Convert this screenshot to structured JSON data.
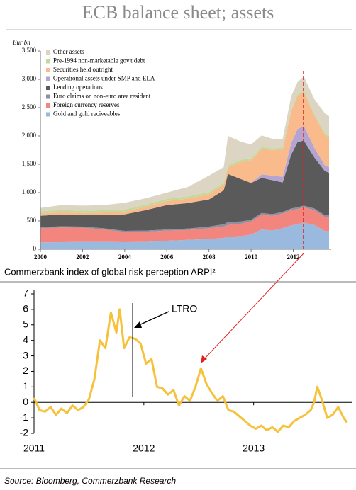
{
  "chart_data": [
    {
      "type": "area",
      "stacked": true,
      "title": "ECB balance sheet; assets",
      "ylabel": "Eur bn",
      "x": [
        2000,
        2001,
        2002,
        2003,
        2004,
        2005,
        2006,
        2007,
        2008,
        2008.7,
        2008.9,
        2009.5,
        2010,
        2010.5,
        2011,
        2011.5,
        2011.9,
        2012.2,
        2012.5,
        2013,
        2013.5,
        2013.7
      ],
      "xlim": [
        2000,
        2013.8
      ],
      "xticks": [
        2000,
        2002,
        2004,
        2006,
        2008,
        2010,
        2012
      ],
      "ylim": [
        0,
        3500
      ],
      "yticks": [
        0,
        500,
        {
          "value": 1000,
          "label": "1,000"
        },
        {
          "value": 1500,
          "label": "1,500"
        },
        {
          "value": 2000,
          "label": "2,000"
        },
        {
          "value": 2500,
          "label": "2,500"
        },
        {
          "value": 3000,
          "label": "3,000"
        },
        {
          "value": 3500,
          "label": "3,500"
        }
      ],
      "legend": "top-left",
      "series": [
        {
          "name": "Gold and gold reciveables",
          "color": "#9ab9df",
          "values": [
            120,
            125,
            130,
            130,
            125,
            130,
            150,
            165,
            180,
            200,
            220,
            230,
            260,
            350,
            330,
            370,
            420,
            440,
            470,
            430,
            320,
            320
          ]
        },
        {
          "name": "Foreign currency reserves",
          "color": "#f2867f",
          "values": [
            250,
            260,
            250,
            220,
            180,
            180,
            180,
            175,
            190,
            200,
            210,
            220,
            230,
            260,
            260,
            260,
            270,
            270,
            270,
            260,
            250,
            250
          ]
        },
        {
          "name": "Euro claims on non-euro area resident",
          "color": "#8e8fa0",
          "values": [
            20,
            20,
            20,
            20,
            20,
            20,
            20,
            25,
            30,
            40,
            50,
            40,
            30,
            30,
            30,
            30,
            30,
            30,
            30,
            30,
            30,
            30
          ]
        },
        {
          "name": "Lending operations",
          "color": "#5a5a5a",
          "values": [
            200,
            210,
            200,
            240,
            290,
            360,
            430,
            450,
            480,
            600,
            850,
            750,
            650,
            620,
            600,
            520,
            950,
            1150,
            1150,
            900,
            780,
            750
          ]
        },
        {
          "name": "Operational assets under SMP and ELA",
          "color": "#b4a4d2",
          "values": [
            0,
            0,
            0,
            0,
            0,
            0,
            0,
            0,
            0,
            0,
            0,
            0,
            0,
            60,
            80,
            100,
            200,
            230,
            260,
            170,
            100,
            100
          ]
        },
        {
          "name": "Securities held outright",
          "color": "#f9ba8c",
          "values": [
            40,
            40,
            40,
            40,
            50,
            60,
            70,
            80,
            90,
            100,
            110,
            300,
            400,
            450,
            450,
            480,
            560,
            580,
            600,
            570,
            540,
            520
          ]
        },
        {
          "name": "Pre-1994 non-marketable gov't debt",
          "color": "#c6d99c",
          "values": [
            40,
            40,
            40,
            40,
            40,
            40,
            40,
            40,
            40,
            40,
            40,
            40,
            40,
            35,
            35,
            35,
            30,
            30,
            30,
            30,
            30,
            30
          ]
        },
        {
          "name": "Other assets",
          "color": "#ddd5c3",
          "values": [
            60,
            85,
            90,
            90,
            115,
            110,
            110,
            165,
            290,
            270,
            520,
            320,
            240,
            205,
            165,
            155,
            240,
            220,
            240,
            260,
            350,
            350
          ]
        }
      ]
    },
    {
      "type": "line",
      "title": "Commerzbank index of global risk perception ARPI²",
      "annotation": "LTRO",
      "x": [
        2011.0,
        2011.05,
        2011.1,
        2011.15,
        2011.2,
        2011.25,
        2011.3,
        2011.35,
        2011.4,
        2011.45,
        2011.5,
        2011.55,
        2011.6,
        2011.65,
        2011.7,
        2011.75,
        2011.78,
        2011.82,
        2011.87,
        2011.92,
        2011.97,
        2012.02,
        2012.07,
        2012.12,
        2012.17,
        2012.22,
        2012.27,
        2012.32,
        2012.37,
        2012.42,
        2012.47,
        2012.52,
        2012.57,
        2012.62,
        2012.67,
        2012.72,
        2012.77,
        2012.82,
        2012.87,
        2012.92,
        2012.97,
        2013.02,
        2013.07,
        2013.12,
        2013.17,
        2013.22,
        2013.27,
        2013.32,
        2013.37,
        2013.42,
        2013.47,
        2013.52,
        2013.55,
        2013.58,
        2013.62,
        2013.67,
        2013.72,
        2013.77,
        2013.82,
        2013.85
      ],
      "xlim": [
        2011,
        2013.9
      ],
      "xticks": [
        2011,
        2012,
        2013
      ],
      "ylim": [
        -2,
        7
      ],
      "yticks": [
        -2,
        -1,
        0,
        1,
        2,
        3,
        4,
        5,
        6,
        7
      ],
      "series": [
        {
          "name": "ARPI",
          "color": "#f6c23c",
          "values": [
            0.3,
            -0.5,
            -0.6,
            -0.3,
            -0.8,
            -0.4,
            -0.7,
            -0.2,
            -0.5,
            -0.3,
            0.2,
            1.5,
            4.0,
            3.5,
            5.8,
            4.5,
            6.0,
            3.5,
            4.2,
            4.1,
            3.8,
            2.5,
            2.8,
            1.0,
            0.9,
            0.5,
            0.8,
            -0.2,
            0.4,
            0.1,
            1.0,
            2.2,
            1.2,
            0.6,
            0.1,
            0.4,
            -0.5,
            -0.6,
            -0.9,
            -1.2,
            -1.5,
            -1.7,
            -1.5,
            -1.8,
            -1.6,
            -1.9,
            -1.5,
            -1.6,
            -1.2,
            -1.0,
            -0.8,
            -0.5,
            0.0,
            1.0,
            0.2,
            -1.0,
            -0.8,
            -0.3,
            -1.0,
            -1.3
          ]
        }
      ]
    }
  ],
  "source": "Source: Bloomberg, Commerzbank Research"
}
